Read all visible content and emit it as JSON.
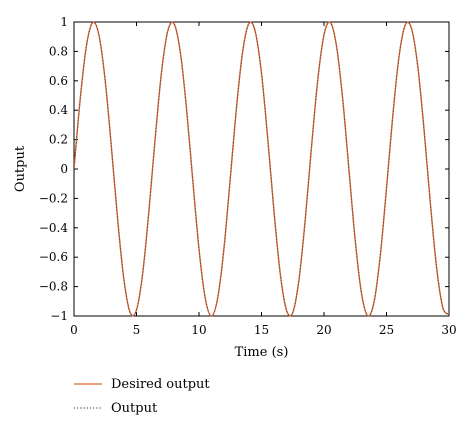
{
  "chart_data": {
    "type": "line",
    "title": "",
    "xlabel": "Time (s)",
    "ylabel": "Output",
    "xlim": [
      0,
      30
    ],
    "ylim": [
      -1,
      1
    ],
    "xticks": [
      "0",
      "5",
      "10",
      "15",
      "20",
      "25",
      "30"
    ],
    "yticks": [
      "1",
      "0.8",
      "0.6",
      "0.4",
      "0.2",
      "0",
      "−0.2",
      "−0.4",
      "−0.6",
      "−0.8",
      "−1"
    ],
    "grid": false,
    "legend_position": "bottom-left",
    "series": [
      {
        "name": "Desired output",
        "style": "solid",
        "color": "#e2622b",
        "x": [
          0,
          0.5,
          1,
          1.5,
          2,
          2.5,
          3,
          3.5,
          4,
          4.5,
          5,
          5.5,
          6,
          6.5,
          7,
          7.5,
          8,
          8.5,
          9,
          9.5,
          10,
          10.5,
          11,
          11.5,
          12,
          12.5,
          13,
          13.5,
          14,
          14.5,
          15,
          15.5,
          16,
          16.5,
          17,
          17.5,
          18,
          18.5,
          19,
          19.5,
          20,
          20.5,
          21,
          21.5,
          22,
          22.5,
          23,
          23.5,
          24,
          24.5,
          25,
          25.5,
          26,
          26.5,
          27,
          27.5,
          28,
          28.5,
          29,
          29.5,
          30
        ],
        "y": [
          0,
          0.479,
          0.841,
          0.997,
          0.909,
          0.598,
          0.141,
          -0.351,
          -0.757,
          -0.978,
          -0.959,
          -0.706,
          -0.279,
          0.215,
          0.657,
          0.938,
          0.989,
          0.798,
          0.412,
          -0.075,
          -0.544,
          -0.88,
          -1.0,
          -0.875,
          -0.537,
          -0.066,
          0.42,
          0.803,
          0.991,
          0.935,
          0.65,
          0.206,
          -0.288,
          -0.712,
          -0.961,
          -0.977,
          -0.751,
          -0.343,
          0.15,
          0.605,
          0.913,
          0.997,
          0.837,
          0.472,
          -0.009,
          -0.487,
          -0.846,
          -0.998,
          -0.906,
          -0.59,
          -0.132,
          0.359,
          0.763,
          0.98,
          0.956,
          0.699,
          0.271,
          -0.224,
          -0.664,
          -0.941,
          -0.988
        ]
      },
      {
        "name": "Output",
        "style": "dotted",
        "color": "#555555",
        "x": [
          0,
          0.5,
          1,
          1.5,
          2,
          2.5,
          3,
          3.5,
          4,
          4.5,
          5,
          5.5,
          6,
          6.5,
          7,
          7.5,
          8,
          8.5,
          9,
          9.5,
          10,
          10.5,
          11,
          11.5,
          12,
          12.5,
          13,
          13.5,
          14,
          14.5,
          15,
          15.5,
          16,
          16.5,
          17,
          17.5,
          18,
          18.5,
          19,
          19.5,
          20,
          20.5,
          21,
          21.5,
          22,
          22.5,
          23,
          23.5,
          24,
          24.5,
          25,
          25.5,
          26,
          26.5,
          27,
          27.5,
          28,
          28.5,
          29,
          29.5,
          30
        ],
        "y": [
          0,
          0.479,
          0.841,
          0.997,
          0.909,
          0.598,
          0.141,
          -0.351,
          -0.757,
          -0.978,
          -0.959,
          -0.706,
          -0.279,
          0.215,
          0.657,
          0.938,
          0.989,
          0.798,
          0.412,
          -0.075,
          -0.544,
          -0.88,
          -1.0,
          -0.875,
          -0.537,
          -0.066,
          0.42,
          0.803,
          0.991,
          0.935,
          0.65,
          0.206,
          -0.288,
          -0.712,
          -0.961,
          -0.977,
          -0.751,
          -0.343,
          0.15,
          0.605,
          0.913,
          0.997,
          0.837,
          0.472,
          -0.009,
          -0.487,
          -0.846,
          -0.998,
          -0.906,
          -0.59,
          -0.132,
          0.359,
          0.763,
          0.98,
          0.956,
          0.699,
          0.271,
          -0.224,
          -0.664,
          -0.941,
          -0.988
        ]
      }
    ]
  }
}
